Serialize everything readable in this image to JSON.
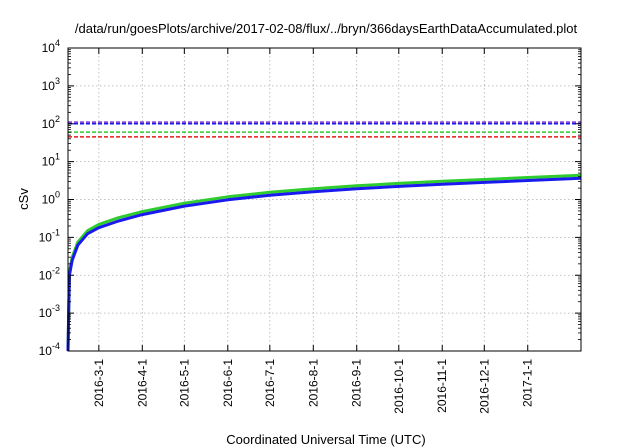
{
  "chart_data": {
    "type": "line",
    "title": "/data/run/goesPlots/archive/2017-02-08/flux/../bryn/366daysEarthDataAccumulated.plot",
    "xlabel": "Coordinated Universal Time (UTC)",
    "ylabel": "cSv",
    "yscale": "log",
    "ylim": [
      0.0001,
      10000
    ],
    "xlim": [
      "2016-02-08",
      "2017-02-08"
    ],
    "grid": true,
    "y_ticks": [
      {
        "base": "10",
        "exp": "-4",
        "value": 0.0001
      },
      {
        "base": "10",
        "exp": "-3",
        "value": 0.001
      },
      {
        "base": "10",
        "exp": "-2",
        "value": 0.01
      },
      {
        "base": "10",
        "exp": "-1",
        "value": 0.1
      },
      {
        "base": "10",
        "exp": "0",
        "value": 1
      },
      {
        "base": "10",
        "exp": "1",
        "value": 10
      },
      {
        "base": "10",
        "exp": "2",
        "value": 100
      },
      {
        "base": "10",
        "exp": "3",
        "value": 1000
      },
      {
        "base": "10",
        "exp": "4",
        "value": 10000
      }
    ],
    "x_ticks": [
      {
        "label": "2016-3-1",
        "date": "2016-03-01"
      },
      {
        "label": "2016-4-1",
        "date": "2016-04-01"
      },
      {
        "label": "2016-5-1",
        "date": "2016-05-01"
      },
      {
        "label": "2016-6-1",
        "date": "2016-06-01"
      },
      {
        "label": "2016-7-1",
        "date": "2016-07-01"
      },
      {
        "label": "2016-8-1",
        "date": "2016-08-01"
      },
      {
        "label": "2016-9-1",
        "date": "2016-09-01"
      },
      {
        "label": "2016-10-1",
        "date": "2016-10-01"
      },
      {
        "label": "2016-11-1",
        "date": "2016-11-01"
      },
      {
        "label": "2016-12-1",
        "date": "2016-12-01"
      },
      {
        "label": "2017-1-1",
        "date": "2017-01-01"
      }
    ],
    "series": [
      {
        "kind": "curve",
        "color": "#2ecc2e",
        "width": 3,
        "x": [
          "2016-02-08",
          "2016-02-09",
          "2016-02-11",
          "2016-02-15",
          "2016-02-22",
          "2016-03-01",
          "2016-03-15",
          "2016-04-01",
          "2016-05-01",
          "2016-06-01",
          "2016-07-01",
          "2016-08-01",
          "2016-09-01",
          "2016-10-01",
          "2016-11-01",
          "2016-12-01",
          "2017-01-01",
          "2017-02-08"
        ],
        "y": [
          0.0001,
          0.012,
          0.03,
          0.075,
          0.15,
          0.22,
          0.33,
          0.48,
          0.8,
          1.18,
          1.55,
          1.92,
          2.3,
          2.66,
          3.02,
          3.38,
          3.8,
          4.35
        ]
      },
      {
        "kind": "curve",
        "color": "#1a1aee",
        "width": 3,
        "x": [
          "2016-02-08",
          "2016-02-09",
          "2016-02-11",
          "2016-02-15",
          "2016-02-22",
          "2016-03-01",
          "2016-03-15",
          "2016-04-01",
          "2016-05-01",
          "2016-06-01",
          "2016-07-01",
          "2016-08-01",
          "2016-09-01",
          "2016-10-01",
          "2016-11-01",
          "2016-12-01",
          "2017-01-01",
          "2017-02-08"
        ],
        "y": [
          0.0001,
          0.01,
          0.025,
          0.062,
          0.125,
          0.18,
          0.27,
          0.4,
          0.67,
          0.98,
          1.3,
          1.6,
          1.92,
          2.22,
          2.52,
          2.82,
          3.17,
          3.62
        ]
      },
      {
        "kind": "hline",
        "color": "#7a2ccf",
        "dash": true,
        "y": 110
      },
      {
        "kind": "hline",
        "color": "#1a1aee",
        "dash": true,
        "y": 100
      },
      {
        "kind": "hline",
        "color": "#2ecc2e",
        "dash": true,
        "y": 60
      },
      {
        "kind": "hline",
        "color": "#e31a1a",
        "dash": true,
        "y": 45
      }
    ]
  }
}
